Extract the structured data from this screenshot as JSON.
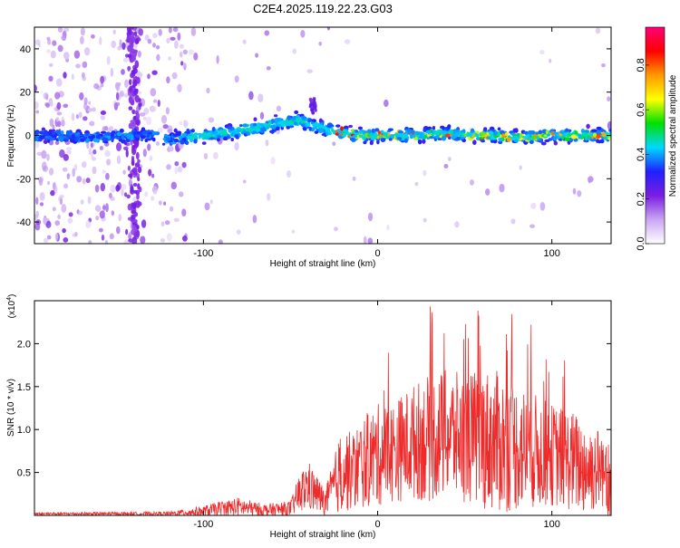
{
  "figure": {
    "title": "C2E4.2025.119.22.23.G03"
  },
  "colors": {
    "snr_line": "#ee2b2b",
    "colormap": [
      "#ffffff",
      "#c9a6f2",
      "#7a1ee0",
      "#2020ff",
      "#00d8ff",
      "#00e000",
      "#ffff00",
      "#ff9900",
      "#ff0000",
      "#ff0077"
    ]
  },
  "chart_data": [
    {
      "type": "heatmap",
      "title": "C2E4.2025.119.22.23.G03",
      "xlabel": "Height of straight line (km)",
      "ylabel": "Frequency (Hz)",
      "xlim": [
        -197,
        134
      ],
      "ylim": [
        -50,
        50
      ],
      "xticks": [
        -100,
        0,
        100
      ],
      "yticks": [
        -40,
        -20,
        0,
        20,
        40
      ],
      "colorbar": {
        "label": "Normalized spectral amplitude",
        "range": [
          0,
          0.97
        ],
        "ticks": [
          "0.0",
          "0.2",
          "0.4",
          "0.6",
          "0.8"
        ],
        "tick_values": [
          0,
          0.2,
          0.4,
          0.6,
          0.8
        ]
      },
      "ridge": {
        "x": [
          -197,
          -160,
          -130,
          -120,
          -100,
          -80,
          -60,
          -45,
          -35,
          -25,
          -10,
          0,
          20,
          40,
          60,
          80,
          100,
          120,
          134
        ],
        "y": [
          0,
          -1,
          0,
          -2,
          0,
          2,
          5,
          7,
          4,
          2,
          0,
          0,
          0,
          1,
          0,
          -1,
          0,
          0,
          0
        ]
      }
    },
    {
      "type": "line",
      "xlabel": "Height of straight line (km)",
      "ylabel": "SNR (10 * v/v)",
      "y_multiplier": "(x10",
      "y_multiplier_exp": "4",
      "y_multiplier_close": ")",
      "xlim": [
        -197,
        134
      ],
      "ylim": [
        0,
        2.5
      ],
      "xticks": [
        -100,
        0,
        100
      ],
      "yticks": [
        "0.5",
        "1.0",
        "1.5",
        "2.0"
      ],
      "ytick_values": [
        0.5,
        1.0,
        1.5,
        2.0
      ],
      "series": [
        {
          "name": "SNR",
          "envelope_x": [
            -197,
            -120,
            -100,
            -90,
            -80,
            -65,
            -50,
            -45,
            -40,
            -35,
            -30,
            -25,
            -20,
            -15,
            -10,
            0,
            10,
            20,
            30,
            40,
            50,
            60,
            70,
            80,
            90,
            100,
            110,
            120,
            130,
            134
          ],
          "envelope_mean": [
            0.02,
            0.02,
            0.05,
            0.08,
            0.1,
            0.06,
            0.08,
            0.25,
            0.35,
            0.25,
            0.15,
            0.35,
            0.55,
            0.5,
            0.6,
            0.7,
            0.75,
            0.85,
            0.9,
            0.95,
            0.9,
            0.9,
            0.85,
            0.8,
            0.75,
            0.7,
            0.65,
            0.55,
            0.55,
            0.5
          ],
          "envelope_amp": [
            0.02,
            0.03,
            0.08,
            0.12,
            0.15,
            0.1,
            0.12,
            0.3,
            0.4,
            0.3,
            0.2,
            0.45,
            0.7,
            0.6,
            0.7,
            0.8,
            0.8,
            0.9,
            1.0,
            1.0,
            1.0,
            1.1,
            1.1,
            1.0,
            0.9,
            0.8,
            0.8,
            0.75,
            0.6,
            0.7
          ]
        }
      ]
    }
  ]
}
